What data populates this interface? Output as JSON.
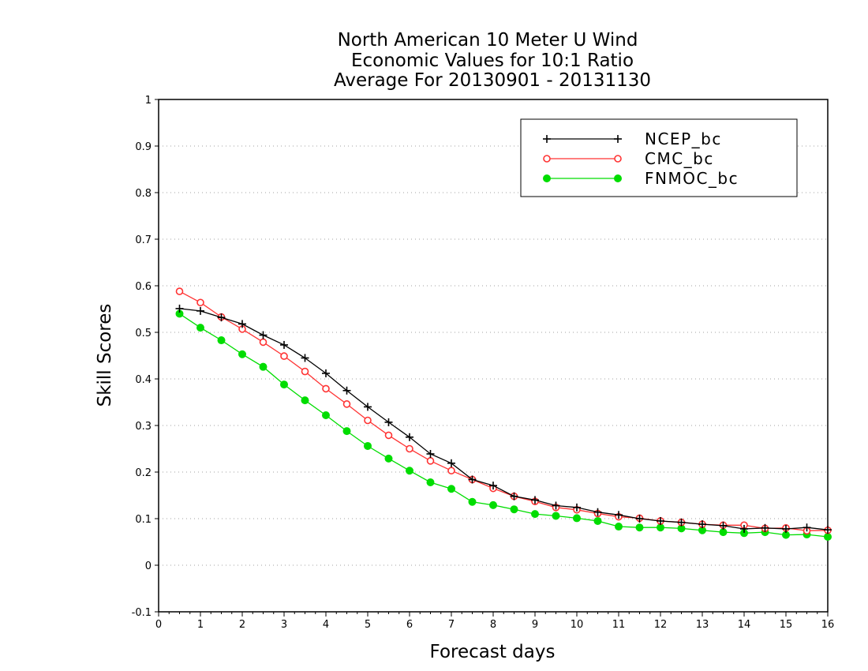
{
  "chart_data": {
    "type": "line",
    "title_lines": [
      "North American 10 Meter U Wind",
      "Economic Values for 10:1 Ratio",
      "Average For 20130901 - 20131130"
    ],
    "xlabel": "Forecast days",
    "ylabel": "Skill Scores",
    "xlim": [
      0,
      16
    ],
    "ylim": [
      -0.1,
      1
    ],
    "x_ticks": [
      0,
      1,
      2,
      3,
      4,
      5,
      6,
      7,
      8,
      9,
      10,
      11,
      12,
      13,
      14,
      15,
      16
    ],
    "y_ticks": [
      -0.1,
      0,
      0.1,
      0.2,
      0.3,
      0.4,
      0.5,
      0.6,
      0.7,
      0.8,
      0.9,
      1
    ],
    "y_tick_labels": [
      "-0.1",
      "0",
      "0.1",
      "0.2",
      "0.3",
      "0.4",
      "0.5",
      "0.6",
      "0.7",
      "0.8",
      "0.9",
      "1"
    ],
    "grid": "horizontal dotted",
    "legend_position": "top-right",
    "x": [
      0.5,
      1,
      1.5,
      2,
      2.5,
      3,
      3.5,
      4,
      4.5,
      5,
      5.5,
      6,
      6.5,
      7,
      7.5,
      8,
      8.5,
      9,
      9.5,
      10,
      10.5,
      11,
      11.5,
      12,
      12.5,
      13,
      13.5,
      14,
      14.5,
      15,
      15.5,
      16
    ],
    "series": [
      {
        "name": "NCEP_bc",
        "color": "#000000",
        "marker": "plus",
        "values": [
          0.551,
          0.546,
          0.532,
          0.518,
          0.494,
          0.473,
          0.445,
          0.412,
          0.375,
          0.34,
          0.307,
          0.275,
          0.239,
          0.219,
          0.184,
          0.171,
          0.148,
          0.14,
          0.128,
          0.124,
          0.114,
          0.108,
          0.1,
          0.095,
          0.092,
          0.088,
          0.085,
          0.078,
          0.08,
          0.078,
          0.081,
          0.076
        ]
      },
      {
        "name": "CMC_bc",
        "color": "#ff3333",
        "marker": "open-circle",
        "values": [
          0.588,
          0.564,
          0.533,
          0.507,
          0.479,
          0.449,
          0.416,
          0.379,
          0.346,
          0.311,
          0.279,
          0.25,
          0.224,
          0.203,
          0.184,
          0.165,
          0.148,
          0.137,
          0.124,
          0.119,
          0.111,
          0.104,
          0.101,
          0.095,
          0.092,
          0.088,
          0.086,
          0.086,
          0.079,
          0.08,
          0.074,
          0.075
        ]
      },
      {
        "name": "FNMOC_bc",
        "color": "#00dd00",
        "marker": "filled-circle",
        "values": [
          0.54,
          0.51,
          0.483,
          0.453,
          0.426,
          0.388,
          0.354,
          0.322,
          0.288,
          0.256,
          0.229,
          0.203,
          0.178,
          0.164,
          0.136,
          0.129,
          0.12,
          0.11,
          0.106,
          0.101,
          0.095,
          0.083,
          0.081,
          0.081,
          0.079,
          0.075,
          0.071,
          0.069,
          0.071,
          0.065,
          0.066,
          0.061
        ]
      }
    ]
  }
}
